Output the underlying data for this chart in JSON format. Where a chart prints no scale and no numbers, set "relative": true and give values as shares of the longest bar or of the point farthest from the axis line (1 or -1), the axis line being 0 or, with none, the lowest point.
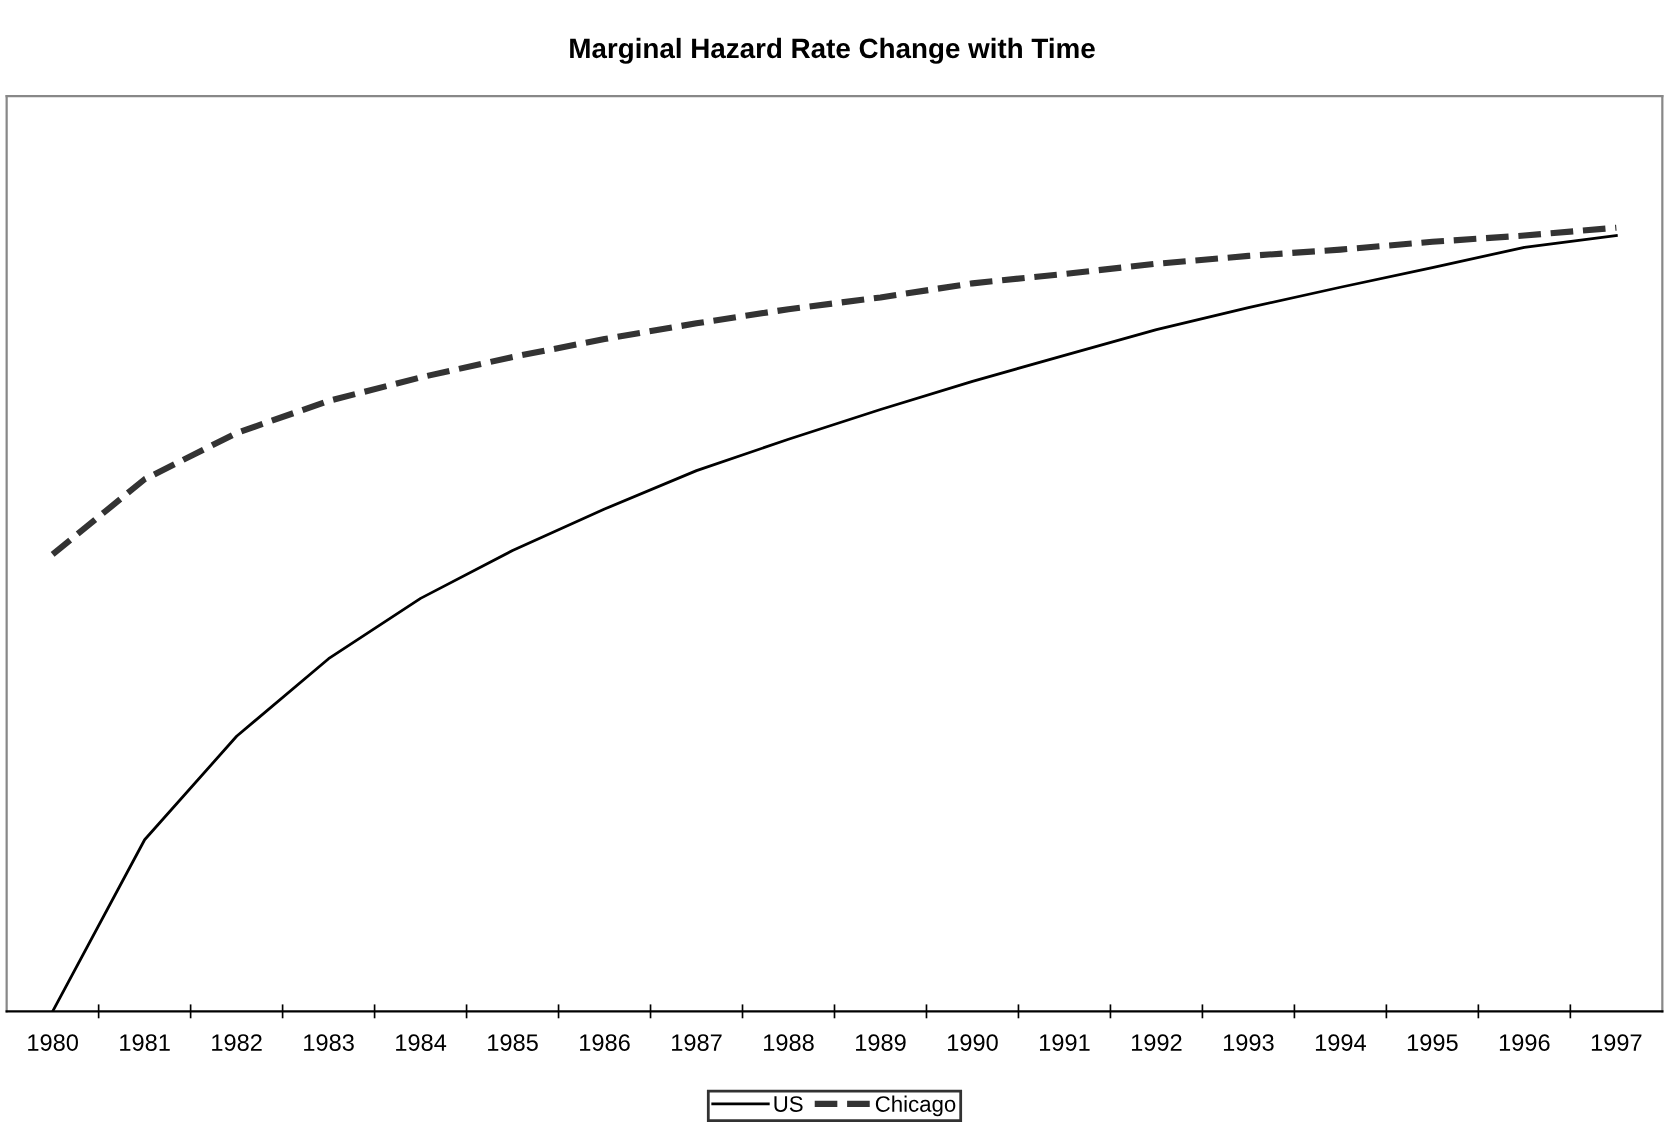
{
  "chart_data": {
    "type": "line",
    "title": "Marginal Hazard Rate Change with Time",
    "relative": true,
    "legend": "bottom",
    "grid": false,
    "marker": "none",
    "categories": [
      "1980",
      "1981",
      "1982",
      "1983",
      "1984",
      "1985",
      "1986",
      "1987",
      "1988",
      "1989",
      "1990",
      "1991",
      "1992",
      "1993",
      "1994",
      "1995",
      "1996",
      "1997"
    ],
    "series": [
      {
        "name": "US",
        "color": "#000000",
        "line_style": "solid",
        "values": [
          0,
          0.219,
          0.351,
          0.45,
          0.527,
          0.588,
          0.641,
          0.69,
          0.73,
          0.768,
          0.804,
          0.837,
          0.87,
          0.898,
          0.924,
          0.949,
          0.975,
          0.99
        ]
      },
      {
        "name": "Chicago",
        "color": "#333333",
        "line_style": "dashed",
        "values": [
          0.583,
          0.679,
          0.738,
          0.779,
          0.809,
          0.835,
          0.858,
          0.878,
          0.896,
          0.911,
          0.929,
          0.941,
          0.954,
          0.964,
          0.972,
          0.982,
          0.99,
          1
        ]
      }
    ]
  }
}
